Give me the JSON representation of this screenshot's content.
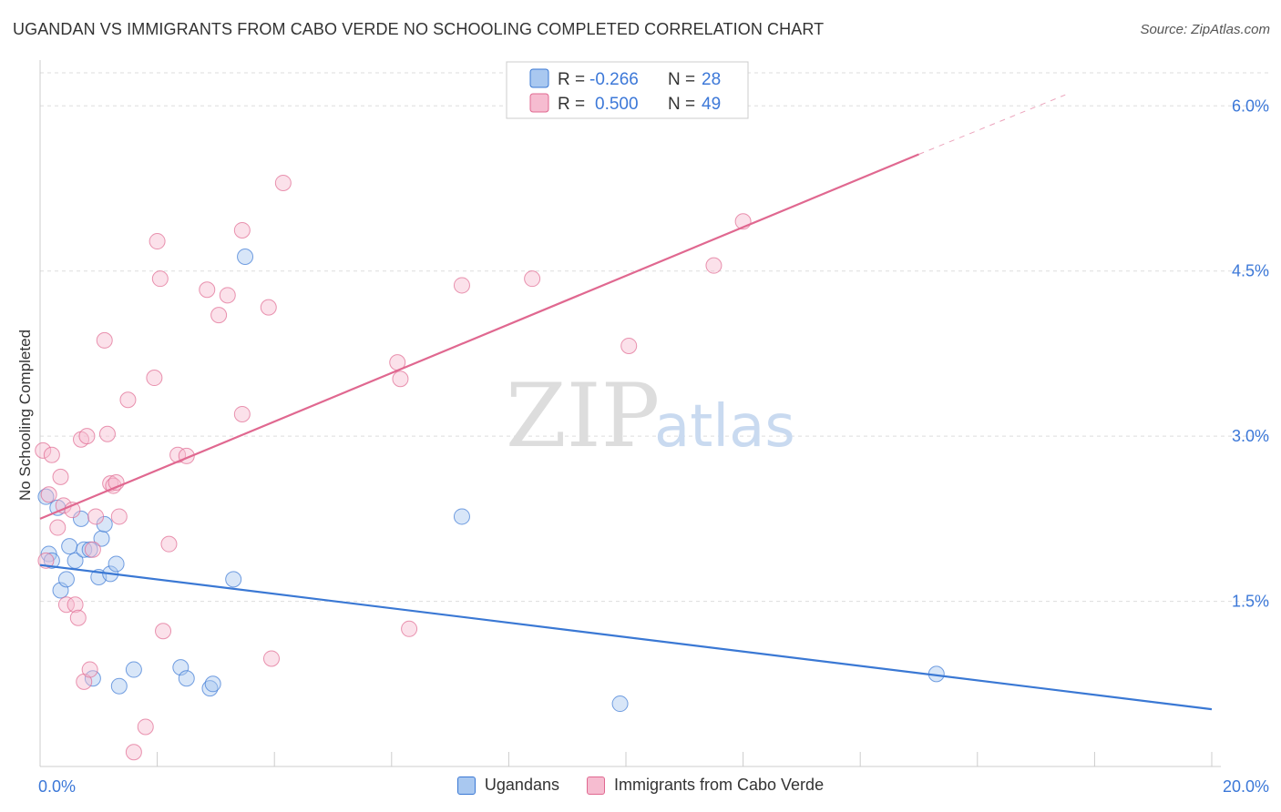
{
  "header": {
    "title": "UGANDAN VS IMMIGRANTS FROM CABO VERDE NO SCHOOLING COMPLETED CORRELATION CHART",
    "source": "Source: ZipAtlas.com"
  },
  "watermark": {
    "zip": "ZIP",
    "atlas": "atlas"
  },
  "colors": {
    "blue": "#3a78d4",
    "blue_fill": "#a9c8f0",
    "pink": "#e06890",
    "pink_fill": "#f6bcd0",
    "grid": "#dddddd",
    "axis_label": "#3c78d8"
  },
  "stats_legend": [
    {
      "r_label": "R =",
      "r_value": "-0.266",
      "n_label": "N =",
      "n_value": "28"
    },
    {
      "r_label": "R =",
      "r_value": "0.500",
      "n_label": "N =",
      "n_value": "49"
    }
  ],
  "chart_data": {
    "type": "scatter",
    "ylabel": "No Schooling Completed",
    "xlim": [
      0,
      20
    ],
    "ylim": [
      0,
      6.3
    ],
    "x_tick_labels": [
      {
        "value": 0,
        "label": "0.0%"
      },
      {
        "value": 20,
        "label": "20.0%"
      }
    ],
    "y_ticks": [
      {
        "value": 1.5,
        "label": "1.5%"
      },
      {
        "value": 3.0,
        "label": "3.0%"
      },
      {
        "value": 4.5,
        "label": "4.5%"
      },
      {
        "value": 6.0,
        "label": "6.0%"
      }
    ],
    "grid": "horizontal dashed",
    "series": [
      {
        "name": "Ugandans",
        "color": "#3a78d4",
        "points": [
          [
            0.1,
            2.45
          ],
          [
            0.15,
            1.93
          ],
          [
            0.2,
            1.87
          ],
          [
            0.3,
            2.35
          ],
          [
            0.35,
            1.6
          ],
          [
            0.45,
            1.7
          ],
          [
            0.5,
            2.0
          ],
          [
            0.6,
            1.87
          ],
          [
            0.7,
            2.25
          ],
          [
            0.75,
            1.97
          ],
          [
            0.85,
            1.97
          ],
          [
            0.9,
            0.8
          ],
          [
            1.0,
            1.72
          ],
          [
            1.05,
            2.07
          ],
          [
            1.1,
            2.2
          ],
          [
            1.2,
            1.75
          ],
          [
            1.3,
            1.84
          ],
          [
            1.35,
            0.73
          ],
          [
            1.6,
            0.88
          ],
          [
            2.4,
            0.9
          ],
          [
            2.5,
            0.8
          ],
          [
            2.9,
            0.71
          ],
          [
            2.95,
            0.75
          ],
          [
            3.3,
            1.7
          ],
          [
            3.5,
            4.63
          ],
          [
            7.2,
            2.27
          ],
          [
            9.9,
            0.57
          ],
          [
            15.3,
            0.84
          ]
        ],
        "trend": {
          "x": [
            0,
            20
          ],
          "y": [
            1.83,
            0.52
          ]
        }
      },
      {
        "name": "Immigrants from Cabo Verde",
        "color": "#e06890",
        "points": [
          [
            0.05,
            2.87
          ],
          [
            0.1,
            1.87
          ],
          [
            0.15,
            2.47
          ],
          [
            0.2,
            2.83
          ],
          [
            0.3,
            2.17
          ],
          [
            0.35,
            2.63
          ],
          [
            0.4,
            2.37
          ],
          [
            0.45,
            1.47
          ],
          [
            0.55,
            2.33
          ],
          [
            0.6,
            1.47
          ],
          [
            0.65,
            1.35
          ],
          [
            0.7,
            2.97
          ],
          [
            0.75,
            0.77
          ],
          [
            0.8,
            3.0
          ],
          [
            0.85,
            0.88
          ],
          [
            0.9,
            1.97
          ],
          [
            0.95,
            2.27
          ],
          [
            1.1,
            3.87
          ],
          [
            1.15,
            3.02
          ],
          [
            1.2,
            2.57
          ],
          [
            1.25,
            2.55
          ],
          [
            1.3,
            2.58
          ],
          [
            1.35,
            2.27
          ],
          [
            1.5,
            3.33
          ],
          [
            1.6,
            0.13
          ],
          [
            1.8,
            0.36
          ],
          [
            1.95,
            3.53
          ],
          [
            2.0,
            4.77
          ],
          [
            2.05,
            4.43
          ],
          [
            2.1,
            1.23
          ],
          [
            2.2,
            2.02
          ],
          [
            2.35,
            2.83
          ],
          [
            2.5,
            2.82
          ],
          [
            2.85,
            4.33
          ],
          [
            3.05,
            4.1
          ],
          [
            3.2,
            4.28
          ],
          [
            3.45,
            3.2
          ],
          [
            3.45,
            4.87
          ],
          [
            3.9,
            4.17
          ],
          [
            3.95,
            0.98
          ],
          [
            4.15,
            5.3
          ],
          [
            6.1,
            3.67
          ],
          [
            6.15,
            3.52
          ],
          [
            6.3,
            1.25
          ],
          [
            7.2,
            4.37
          ],
          [
            8.4,
            4.43
          ],
          [
            10.05,
            3.82
          ],
          [
            11.5,
            4.55
          ],
          [
            12.0,
            4.95
          ]
        ],
        "trend": {
          "x": [
            0,
            15.0
          ],
          "y": [
            2.25,
            5.56
          ]
        },
        "trend_dashed": {
          "x": [
            15.0,
            17.5
          ],
          "y": [
            5.56,
            6.1
          ]
        }
      }
    ]
  }
}
